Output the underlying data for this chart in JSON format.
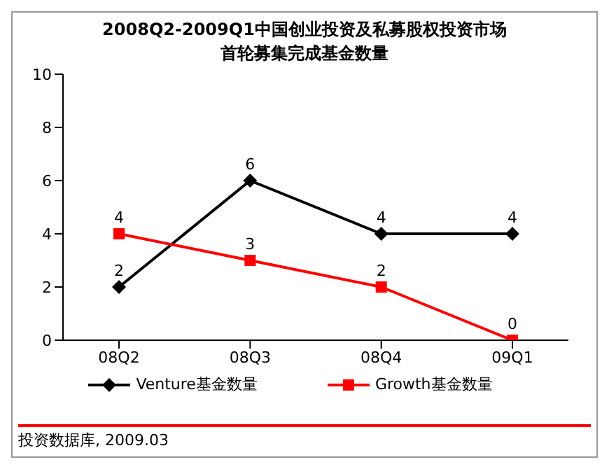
{
  "chart_data": {
    "type": "line",
    "title": "2008Q2-2009Q1中国创业投资及私募股权投资市场首轮募集完成基金数量",
    "categories": [
      "08Q2",
      "08Q3",
      "08Q4",
      "09Q1"
    ],
    "series": [
      {
        "name": "Venture基金数量",
        "color": "#000000",
        "values": [
          2,
          6,
          4,
          4
        ],
        "marker": "diamond"
      },
      {
        "name": "Growth基金数量",
        "color": "#ff0000",
        "values": [
          4,
          3,
          2,
          0
        ],
        "marker": "square"
      }
    ],
    "ylim": [
      0,
      10
    ],
    "yticks": [
      0,
      2,
      4,
      6,
      8,
      10
    ],
    "grid": false,
    "legend": "bottom",
    "data_labels": true,
    "line_style": "solid",
    "annotations": [
      "投资数据库, 2009.03"
    ]
  }
}
